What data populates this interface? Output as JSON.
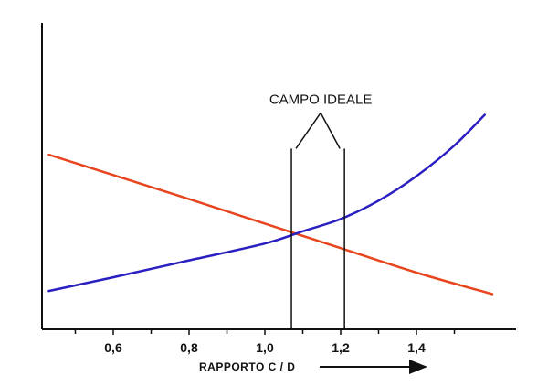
{
  "chart_data": {
    "type": "line",
    "xlabel": "RAPPORTO  C / D",
    "xlim": [
      0.4,
      1.6
    ],
    "ylim": [
      0,
      100
    ],
    "x_ticks": [
      {
        "value": 0.6,
        "label": "0,6"
      },
      {
        "value": 0.8,
        "label": "0,8"
      },
      {
        "value": 1.0,
        "label": "1,0"
      },
      {
        "value": 1.2,
        "label": "1,2"
      },
      {
        "value": 1.4,
        "label": "1,4"
      }
    ],
    "x_minor_ticks": [
      0.5,
      0.7,
      0.9,
      1.1,
      1.3,
      1.5
    ],
    "y_tick_labels": false,
    "grid": false,
    "series": [
      {
        "color": "#e8451e",
        "x": [
          0.43,
          0.8,
          1.0,
          1.2,
          1.4,
          1.6
        ],
        "y": [
          57,
          42.5,
          34.5,
          26.5,
          18.5,
          11.5
        ]
      },
      {
        "color": "#2a1fc0",
        "x": [
          0.43,
          0.6,
          0.8,
          1.0,
          1.1,
          1.2,
          1.3,
          1.4,
          1.5,
          1.58
        ],
        "y": [
          12.5,
          17,
          22.5,
          28,
          32,
          36,
          42,
          50,
          60,
          70
        ]
      }
    ],
    "annotations": [
      {
        "text": "CAMPO IDEALE",
        "range": [
          1.07,
          1.21
        ],
        "band_top_y": 59,
        "band_bottom_y": 0
      }
    ]
  }
}
